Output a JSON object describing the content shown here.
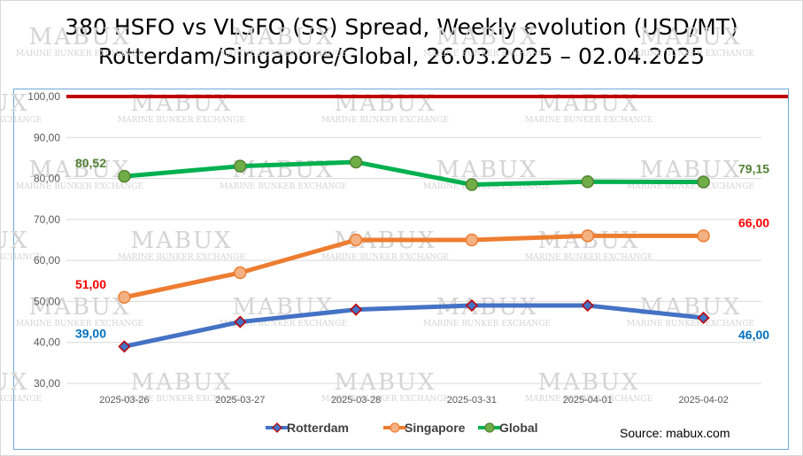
{
  "chart_data": {
    "type": "line",
    "title_line1": "380 HSFO vs VLSFO (SS) Spread, Weekly evolution (USD/MT)",
    "title_line2": "Rotterdam/Singapore/Global, 26.03.2025 – 02.04.2025",
    "categories": [
      "2025-03-26",
      "2025-03-27",
      "2025-03-28",
      "2025-03-31",
      "2025-04-01",
      "2025-04-02"
    ],
    "ylim": [
      30,
      100
    ],
    "yticks": [
      "30,00",
      "40,00",
      "50,00",
      "60,00",
      "70,00",
      "80,00",
      "90,00",
      "100,00"
    ],
    "series": [
      {
        "name": "Rotterdam",
        "values": [
          39.0,
          45.0,
          48.0,
          49.0,
          49.0,
          46.0
        ],
        "color": "#4472c4",
        "marker_fill": "#4472c4",
        "marker_stroke": "#c00000",
        "start_label": "39,00",
        "end_label": "46,00",
        "label_color": "#0070c0"
      },
      {
        "name": "Singapore",
        "values": [
          51.0,
          57.0,
          65.0,
          65.0,
          66.0,
          66.0
        ],
        "color": "#ed7d31",
        "marker_fill": "#f4b183",
        "marker_stroke": "#ed7d31",
        "start_label": "51,00",
        "end_label": "66,00",
        "label_color": "#ff0000"
      },
      {
        "name": "Global",
        "values": [
          80.52,
          83.0,
          84.0,
          78.5,
          79.2,
          79.15
        ],
        "color": "#00b050",
        "marker_fill": "#70ad47",
        "marker_stroke": "#548235",
        "start_label": "80,52",
        "end_label": "79,15",
        "label_color": "#538135"
      }
    ],
    "reference_line": {
      "value": 100,
      "color": "#c00000"
    },
    "legend_position": "bottom-center"
  },
  "watermark": {
    "brand": "MABUX",
    "tagline": "MARINE BUNKER EXCHANGE"
  },
  "source": "Source: mabux.com"
}
